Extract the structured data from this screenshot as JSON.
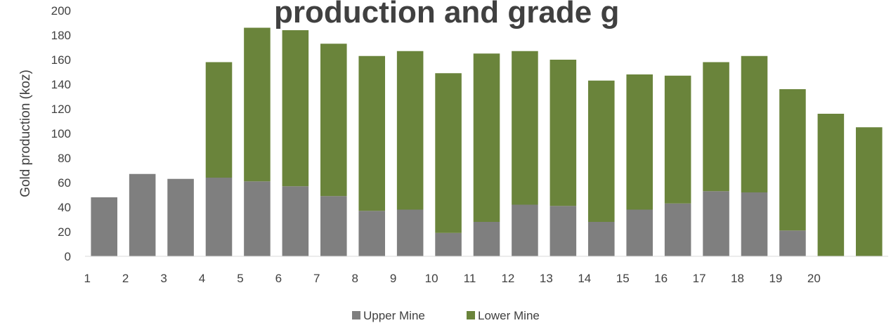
{
  "chart_data": {
    "type": "bar",
    "stacked": true,
    "title": "production and grade g",
    "ylabel": "Gold production (koz)",
    "xlabel": "",
    "ylim": [
      0,
      200
    ],
    "yticks": [
      0,
      20,
      40,
      60,
      80,
      100,
      120,
      140,
      160,
      180,
      200
    ],
    "categories": [
      "1",
      "2",
      "3",
      "4",
      "5",
      "6",
      "7",
      "8",
      "9",
      "10",
      "11",
      "12",
      "13",
      "14",
      "15",
      "16",
      "17",
      "18",
      "19",
      "20",
      ""
    ],
    "series": [
      {
        "name": "Upper Mine",
        "color": "#7f7f7f",
        "values": [
          48,
          67,
          63,
          64,
          61,
          57,
          49,
          37,
          38,
          19,
          28,
          42,
          41,
          28,
          38,
          43,
          53,
          52,
          21,
          0,
          0
        ]
      },
      {
        "name": "Lower Mine",
        "color": "#6a843b",
        "values": [
          0,
          0,
          0,
          94,
          125,
          127,
          124,
          126,
          129,
          130,
          137,
          125,
          119,
          115,
          110,
          104,
          105,
          111,
          115,
          116,
          105
        ]
      }
    ],
    "legend_position": "bottom",
    "grid": false
  }
}
